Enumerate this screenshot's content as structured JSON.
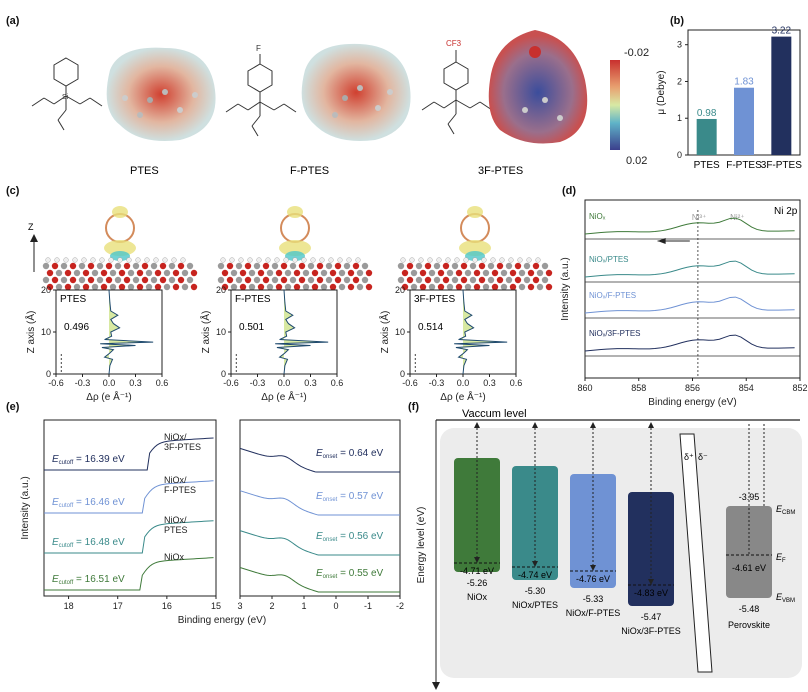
{
  "panels": {
    "a": {
      "label": "(a)",
      "molecules": [
        "PTES",
        "F-PTES",
        "3F-PTES"
      ],
      "substituents": [
        "F",
        "CF3"
      ],
      "colorbar": {
        "max": "-0.02",
        "min": "0.02"
      },
      "colors": {
        "negative": "#c8302e",
        "neutral": "#d8e9a4",
        "positive": "#3b5aa0"
      }
    },
    "b": {
      "label": "(b)",
      "ylabel": "μ (Debye)"
    },
    "c": {
      "label": "(c)",
      "z_arrow_label": "Z",
      "charts": [
        {
          "name": "PTES",
          "value": "0.496"
        },
        {
          "name": "F-PTES",
          "value": "0.501"
        },
        {
          "name": "3F-PTES",
          "value": "0.514"
        }
      ]
    },
    "d": {
      "label": "(d)",
      "corner_label": "Ni 2p",
      "peak_labels": [
        "Ni³⁺",
        "Ni²⁺"
      ]
    },
    "e": {
      "label": "(e)"
    },
    "f": {
      "label": "(f)"
    }
  },
  "chart_data": [
    {
      "type": "bar",
      "panel": "b",
      "categories": [
        "PTES",
        "F-PTES",
        "3F-PTES"
      ],
      "values": [
        0.98,
        1.83,
        3.22
      ],
      "value_labels": [
        "0.98",
        "1.83",
        "3.22"
      ],
      "ylabel": "μ (Debye)",
      "ylim": [
        0,
        3.4
      ],
      "colors": [
        "#3a8a8a",
        "#6f92d4",
        "#22305e"
      ]
    },
    {
      "type": "line",
      "panel": "c",
      "xlabel": "Δρ (e Å⁻¹)",
      "ylabel": "Z axis (Å)",
      "xticks": [
        "-0.6",
        "-0.3",
        "0.0",
        "0.3",
        "0.6"
      ],
      "yticks": [
        "0",
        "10",
        "20"
      ],
      "xlim": [
        -0.6,
        0.6
      ],
      "ylim": [
        0,
        20
      ],
      "series": [
        {
          "name": "PTES",
          "value": "0.496"
        },
        {
          "name": "F-PTES",
          "value": "0.501"
        },
        {
          "name": "3F-PTES",
          "value": "0.514"
        }
      ]
    },
    {
      "type": "line",
      "panel": "d",
      "xlabel": "Binding energy (eV)",
      "ylabel": "Intensity (a.u.)",
      "xticks": [
        "860",
        "858",
        "856",
        "854",
        "852"
      ],
      "xlim": [
        860,
        852
      ],
      "series": [
        {
          "name": "NiOx",
          "color": "#3f7a3a"
        },
        {
          "name": "NiOx/PTES",
          "color": "#3a8a8a"
        },
        {
          "name": "NiOx/F-PTES",
          "color": "#6f92d4"
        },
        {
          "name": "NiOx/3F-PTES",
          "color": "#22305e"
        }
      ]
    },
    {
      "type": "line",
      "panel": "e",
      "xlabel": "Binding energy (eV)",
      "ylabel": "Intensity (a.u.)",
      "left_xticks": [
        "18",
        "17",
        "16",
        "15"
      ],
      "right_xticks": [
        "3",
        "2",
        "1",
        "0",
        "-1",
        "-2"
      ],
      "series": [
        {
          "name_line1": "NiOx/",
          "name_line2": "3F-PTES",
          "cutoff": "16.39 eV",
          "onset": "0.64 eV",
          "color": "#22305e"
        },
        {
          "name_line1": "NiOx/",
          "name_line2": "F-PTES",
          "cutoff": "16.46 eV",
          "onset": "0.57 eV",
          "color": "#6f92d4"
        },
        {
          "name_line1": "NiOx/",
          "name_line2": "PTES",
          "cutoff": "16.48 eV",
          "onset": "0.56 eV",
          "color": "#3a8a8a"
        },
        {
          "name_line1": "NiOx",
          "name_line2": "",
          "cutoff": "16.51 eV",
          "onset": "0.55 eV",
          "color": "#3f7a3a"
        }
      ],
      "cutoff_symbol": "E",
      "cutoff_sub": "cutoff",
      "onset_sub": "onset"
    },
    {
      "type": "diagram",
      "panel": "f",
      "title": "Vaccum level",
      "ylabel": "Energy level (eV)",
      "dipole_labels": [
        "δ⁺",
        "δ⁻"
      ],
      "blocks": [
        {
          "name": "NiOx",
          "fermi": "-4.71 eV",
          "vbm": "-5.26",
          "color": "#3f7a3a"
        },
        {
          "name": "NiOx/PTES",
          "fermi": "-4.74 eV",
          "vbm": "-5.30",
          "color": "#3a8a8a"
        },
        {
          "name": "NiOx/F-PTES",
          "fermi": "-4.76 eV",
          "vbm": "-5.33",
          "color": "#6f92d4"
        },
        {
          "name": "NiOx/3F-PTES",
          "fermi": "-4.83 eV",
          "vbm": "-5.47",
          "color": "#22305e"
        }
      ],
      "perovskite": {
        "name": "Perovskite",
        "cbm": "-3.95",
        "fermi": "-4.61 eV",
        "vbm": "-5.48",
        "color": "#888888",
        "labels": {
          "cbm": "CBM",
          "f": "F",
          "vbm": "VBM",
          "e": "E"
        }
      }
    }
  ]
}
